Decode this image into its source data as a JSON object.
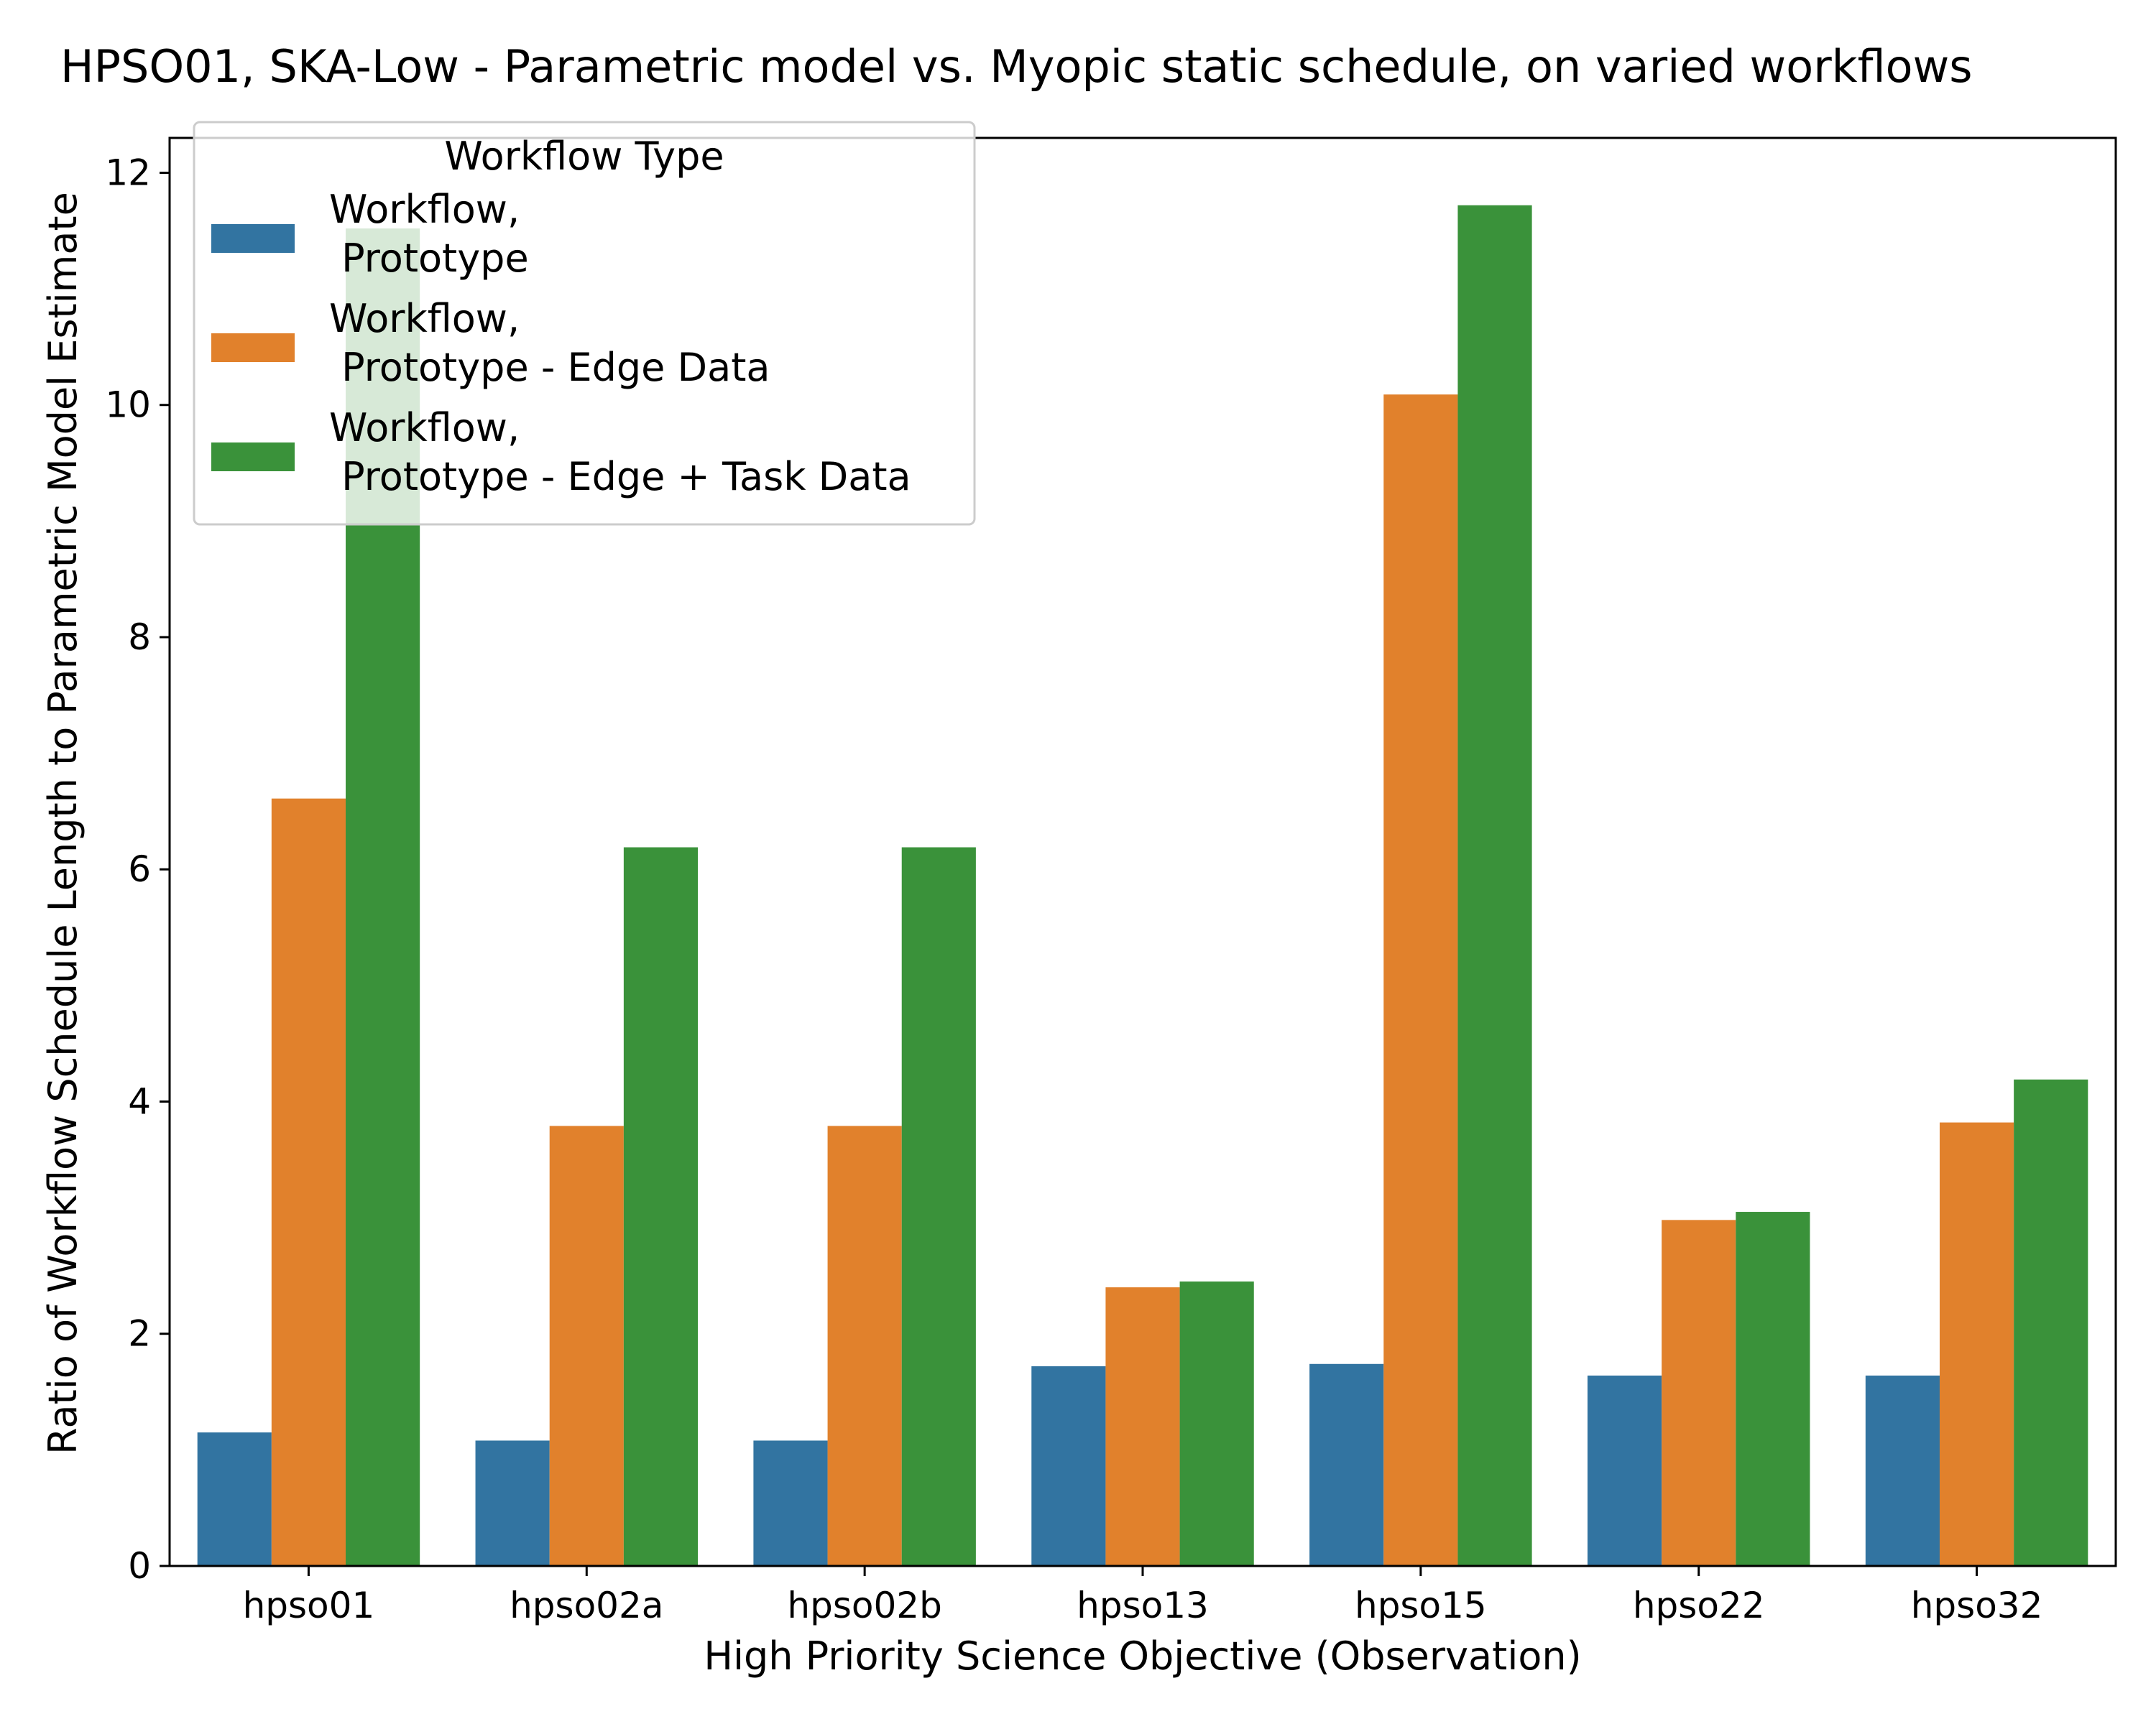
{
  "chart_data": {
    "type": "bar",
    "title": "HPSO01, SKA-Low - Parametric model vs. Myopic static schedule, on varied workflows",
    "xlabel": "High Priority Science Objective (Observation)",
    "ylabel": "Ratio of Workflow Schedule Length to Parametric Model Estimate",
    "categories": [
      "hpso01",
      "hpso02a",
      "hpso02b",
      "hpso13",
      "hpso15",
      "hpso22",
      "hpso32"
    ],
    "ylim": [
      0,
      12.3
    ],
    "yticks": [
      "0",
      "2",
      "4",
      "6",
      "8",
      "10",
      "12"
    ],
    "grid": false,
    "legend": {
      "title": "Workflow Type",
      "placement": "top-left"
    },
    "series": [
      {
        "name": "Workflow,\n Prototype",
        "color": "#3274a1",
        "values": [
          1.15,
          1.08,
          1.08,
          1.72,
          1.74,
          1.64,
          1.64
        ]
      },
      {
        "name": "Workflow,\n Prototype - Edge Data",
        "color": "#e1812c",
        "values": [
          6.61,
          3.79,
          3.79,
          2.4,
          10.09,
          2.98,
          3.82
        ]
      },
      {
        "name": "Workflow,\n Prototype - Edge + Task Data",
        "color": "#3a923a",
        "values": [
          11.52,
          6.19,
          6.19,
          2.45,
          11.72,
          3.05,
          4.19
        ]
      }
    ]
  }
}
